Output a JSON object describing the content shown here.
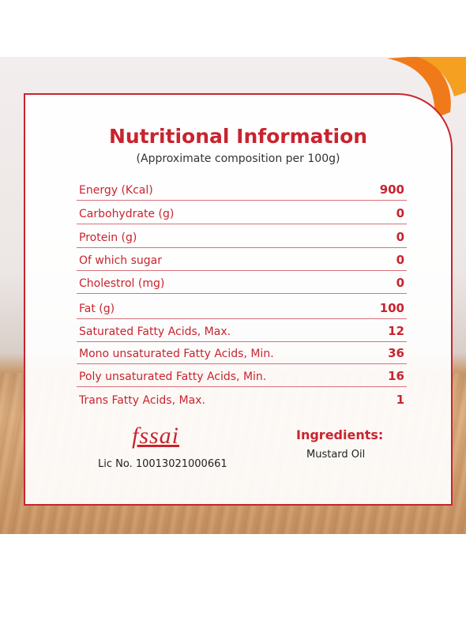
{
  "header": {
    "title": "Nutritional Information",
    "subtitle": "(Approximate composition per 100g)"
  },
  "table": {
    "rows": [
      [
        "Energy (Kcal)",
        900
      ],
      [
        "Carbohydrate (g)",
        0
      ],
      [
        "Protein (g)",
        0
      ],
      [
        "Of which sugar",
        0
      ],
      [
        "Cholestrol (mg)",
        0
      ],
      [
        "Fat (g)",
        100
      ],
      [
        "Saturated Fatty Acids, Max.",
        12
      ],
      [
        "Mono unsaturated Fatty Acids, Min.",
        36
      ],
      [
        "Poly unsaturated Fatty Acids, Min.",
        16
      ],
      [
        "Trans Fatty Acids, Max.",
        1
      ]
    ]
  },
  "license": {
    "logo": "fssai",
    "number": "Lic No. 10013021000661"
  },
  "ingredients": {
    "heading": "Ingredients:",
    "text": "Mustard Oil"
  }
}
